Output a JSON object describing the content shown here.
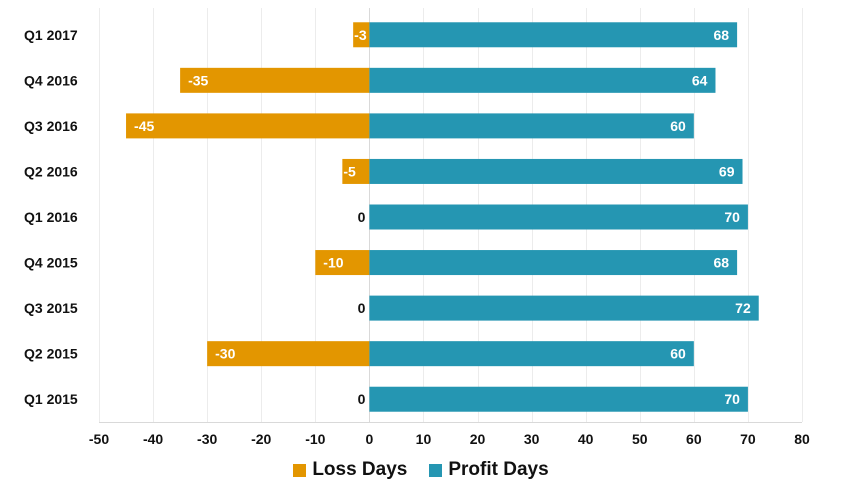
{
  "chart_data": {
    "type": "bar",
    "orientation": "horizontal",
    "categories": [
      "Q1 2017",
      "Q4 2016",
      "Q3 2016",
      "Q2 2016",
      "Q1 2016",
      "Q4 2015",
      "Q3 2015",
      "Q2 2015",
      "Q1 2015"
    ],
    "series": [
      {
        "name": "Loss Days",
        "color": "#e39600",
        "values": [
          -3,
          -35,
          -45,
          -5,
          0,
          -10,
          0,
          -30,
          0
        ]
      },
      {
        "name": "Profit Days",
        "color": "#2596b2",
        "values": [
          68,
          64,
          60,
          69,
          70,
          68,
          72,
          60,
          70
        ]
      }
    ],
    "xlim": [
      -50,
      80
    ],
    "xticks": [
      -50,
      -40,
      -30,
      -20,
      -10,
      0,
      10,
      20,
      30,
      40,
      50,
      60,
      70,
      80
    ],
    "stacked": true,
    "grid": "vertical",
    "legend": "bottom-center",
    "title": "",
    "xlabel": "",
    "ylabel": ""
  }
}
